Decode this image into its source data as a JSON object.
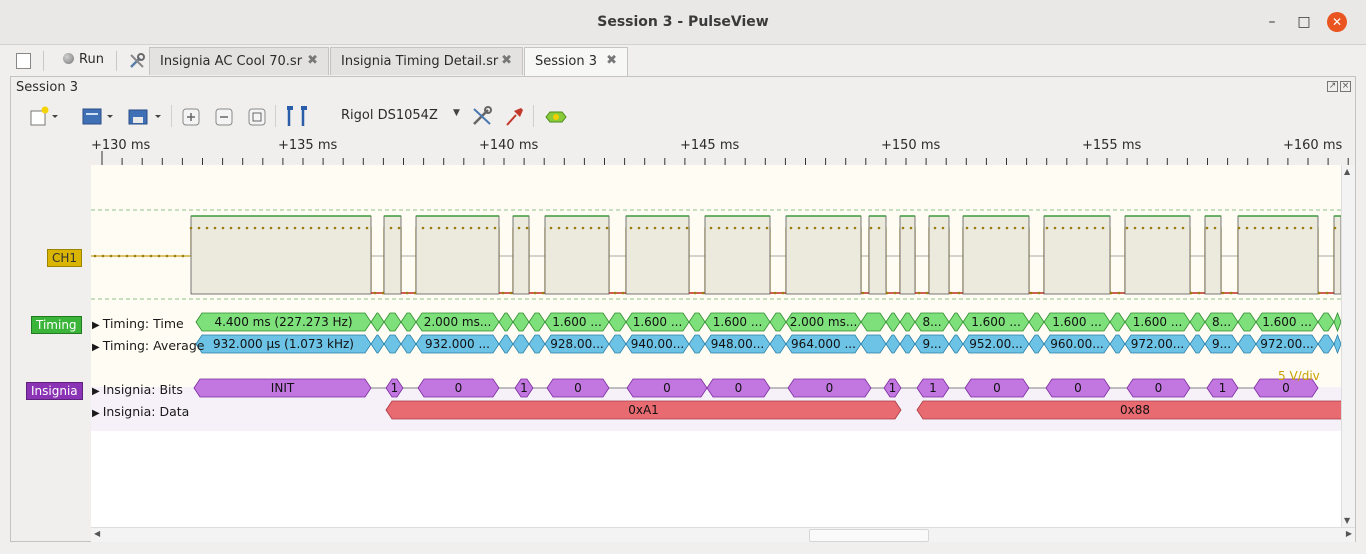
{
  "window": {
    "title": "Session 3 - PulseView"
  },
  "tabbar": {
    "run_label": "Run",
    "tabs": [
      {
        "label": "Insignia AC Cool 70.sr"
      },
      {
        "label": "Insignia Timing Detail.sr"
      },
      {
        "label": "Session 3"
      }
    ]
  },
  "session": {
    "label": "Session 3"
  },
  "toolbar": {
    "device": "Rigol DS1054Z"
  },
  "ruler": {
    "ticks": [
      "+130 ms",
      "+135 ms",
      "+140 ms",
      "+145 ms",
      "+150 ms",
      "+155 ms",
      "+160 ms"
    ]
  },
  "traces": {
    "ch1": {
      "label": "CH1",
      "scale": "5 V/div",
      "color": "#d4b400"
    },
    "timing": {
      "label": "Timing",
      "color": "#3ab53a"
    },
    "insignia": {
      "label": "Insignia",
      "color": "#8b33b5"
    }
  },
  "rows": {
    "timing_time": {
      "label": "Timing: Time",
      "annotations": [
        "4.400 ms (227.273 Hz)",
        "2.000 ms...",
        "1.600 ...",
        "1.600 ...",
        "1.600 ...",
        "2.000 ms...",
        "8...",
        "1.600 ...",
        "1.600 ...",
        "1.600 ...",
        "8...",
        "1.600 ..."
      ]
    },
    "timing_average": {
      "label": "Timing: Average",
      "annotations": [
        "932.000 µs (1.073 kHz)",
        "932.000 ...",
        "928.00...",
        "940.00...",
        "948.00...",
        "964.000 ...",
        "9...",
        "952.00...",
        "960.00...",
        "972.00...",
        "9...",
        "972.00..."
      ]
    },
    "insignia_bits": {
      "label": "Insignia: Bits",
      "annotations": [
        "INIT",
        "1",
        "0",
        "1",
        "0",
        "0",
        "0",
        "0",
        "1",
        "1",
        "0",
        "0",
        "0",
        "1",
        "0"
      ]
    },
    "insignia_data": {
      "label": "Insignia: Data",
      "annotations": [
        "0xA1",
        "0x88"
      ]
    }
  },
  "colors": {
    "timing_time_fill": "#7ee07a",
    "timing_avg_fill": "#6cc3e6",
    "bits_fill": "#c277e0",
    "data_fill": "#e86b72"
  }
}
